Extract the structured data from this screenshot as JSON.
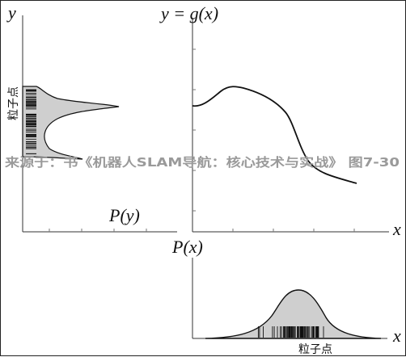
{
  "labels": {
    "top_left_axis_y": "y",
    "title_function": "y = g(x)",
    "py_label": "P(y)",
    "top_right_axis_x": "x",
    "px_label": "P(x)",
    "bottom_axis_x": "x",
    "particles_left": "粒子点",
    "particles_bottom": "粒子点"
  },
  "watermark": {
    "text": "来源于：书《机器人SLAM导航：核心技术与实战》 图7-30"
  },
  "colors": {
    "axis": "#333333",
    "tick": "#777777",
    "fill": "#cfcfcf",
    "curve": "#111111",
    "particle": "#111111"
  },
  "icons": {
    "particles": "vertical-tick-rug-icon"
  }
}
